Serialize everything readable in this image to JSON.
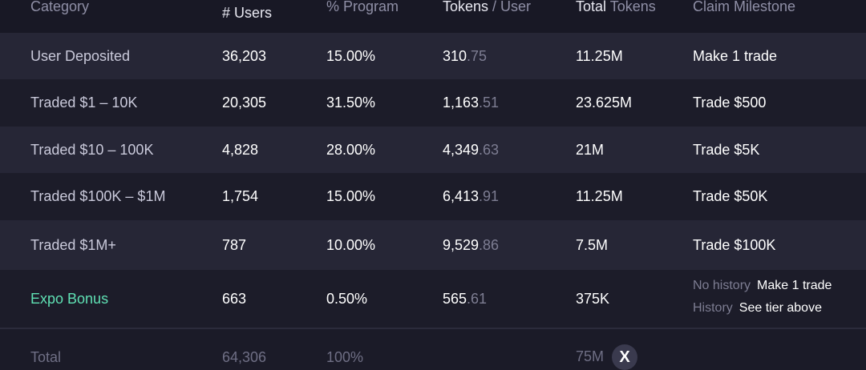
{
  "header": {
    "category": "Category",
    "users": "# Users",
    "program": "% Program",
    "tokens_user_a": "Tokens",
    "tokens_user_b": " / User",
    "total_tokens_a": "Total",
    "total_tokens_b": " Tokens",
    "milestone": "Claim Milestone"
  },
  "rows": [
    {
      "category": "User Deposited",
      "users": "36,203",
      "program": "15.00%",
      "tok_int": "310",
      "tok_dec": ".75",
      "total": "11.25M",
      "milestone": "Make 1 trade"
    },
    {
      "category": "Traded $1 – 10K",
      "users": "20,305",
      "program": "31.50%",
      "tok_int": "1,163",
      "tok_dec": ".51",
      "total": "23.625M",
      "milestone": "Trade $500"
    },
    {
      "category": "Traded $10 – 100K",
      "users": "4,828",
      "program": "28.00%",
      "tok_int": "4,349",
      "tok_dec": ".63",
      "total": "21M",
      "milestone": "Trade $5K"
    },
    {
      "category": "Traded $100K – $1M",
      "users": "1,754",
      "program": "15.00%",
      "tok_int": "6,413",
      "tok_dec": ".91",
      "total": "11.25M",
      "milestone": "Trade $50K"
    },
    {
      "category": "Traded $1M+",
      "users": "787",
      "program": "10.00%",
      "tok_int": "9,529",
      "tok_dec": ".86",
      "total": "7.5M",
      "milestone": "Trade $100K"
    }
  ],
  "bonus": {
    "category": "Expo Bonus",
    "users": "663",
    "program": "0.50%",
    "tok_int": "565",
    "tok_dec": ".61",
    "total": "375K",
    "no_history_label": "No history",
    "no_history_value": "Make 1 trade",
    "history_label": "History",
    "history_value": "See tier above"
  },
  "total": {
    "label": "Total",
    "users": "64,306",
    "program": "100%",
    "total": "75M",
    "icon_glyph": "X"
  },
  "colors": {
    "accent_green": "#5fe0b3"
  }
}
